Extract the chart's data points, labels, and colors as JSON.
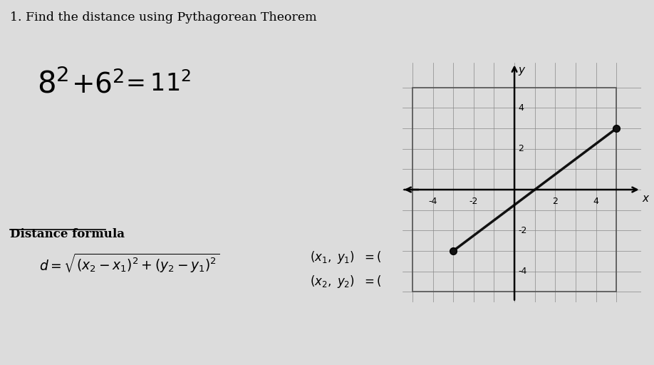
{
  "title": "1. Find the distance using Pythagorean Theorem",
  "background_color": "#dcdcdc",
  "distance_formula_label": "Distance formula",
  "graph_xlim": [
    -5.5,
    6.2
  ],
  "graph_ylim": [
    -5.5,
    6.2
  ],
  "grid_minor_ticks_x": [
    -5,
    -4,
    -3,
    -2,
    -1,
    0,
    1,
    2,
    3,
    4,
    5
  ],
  "grid_minor_ticks_y": [
    -5,
    -4,
    -3,
    -2,
    -1,
    0,
    1,
    2,
    3,
    4,
    5
  ],
  "grid_major_labels": [
    -4,
    -2,
    2,
    4
  ],
  "point1": [
    -3,
    -3
  ],
  "point2": [
    5,
    3
  ],
  "line_color": "#111111",
  "point_color": "#111111",
  "axis_x_label": "x",
  "axis_y_label": "y"
}
